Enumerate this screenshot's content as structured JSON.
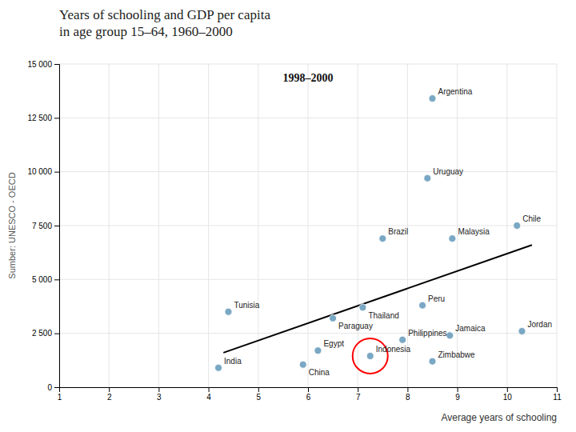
{
  "chart_data": {
    "type": "scatter",
    "title": "Years of schooling and GDP per capita\nin age group 15–64, 1960–2000",
    "subtitle": "1998–2000",
    "x_label": "Average years of schooling",
    "source": "Sumber: UNESCO - OECD",
    "xlim": [
      1,
      11
    ],
    "ylim": [
      0,
      15000
    ],
    "xticks": [
      1,
      2,
      3,
      4,
      5,
      6,
      7,
      8,
      9,
      10,
      11
    ],
    "yticks": [
      0,
      {
        "value": 2500,
        "label": "2 500"
      },
      {
        "value": 5000,
        "label": "5 000"
      },
      {
        "value": 7500,
        "label": "7 500"
      },
      {
        "value": 10000,
        "label": "10 000"
      },
      {
        "value": 12500,
        "label": "12 500"
      },
      {
        "value": 15000,
        "label": "15 000"
      }
    ],
    "grid": true,
    "series": [
      {
        "color": "#7aa8c4",
        "x": [
          4.4,
          4.2,
          5.9,
          6.2,
          6.5,
          7.1,
          7.5,
          7.25,
          7.9,
          8.3,
          8.4,
          8.5,
          8.9,
          8.85,
          8.5,
          10.2,
          10.3
        ],
        "values": [
          3500,
          900,
          1050,
          1700,
          3200,
          3700,
          6900,
          1450,
          2200,
          3800,
          9700,
          13400,
          6900,
          2400,
          1200,
          7500,
          2600
        ],
        "labels": [
          "Tunisia",
          "India",
          "China",
          "Egypt",
          "Paraguay",
          "Thailand",
          "Brazil",
          "Indonesia",
          "Philippines",
          "Peru",
          "Uruguay",
          "Argentina",
          "Malaysia",
          "Jamaica",
          "Zimbabwe",
          "Chile",
          "Jordan"
        ]
      }
    ],
    "trendline": {
      "x": [
        4.3,
        10.5
      ],
      "values": [
        1600,
        6600
      ]
    },
    "highlight": {
      "x": 7.25,
      "y": 1450
    }
  }
}
